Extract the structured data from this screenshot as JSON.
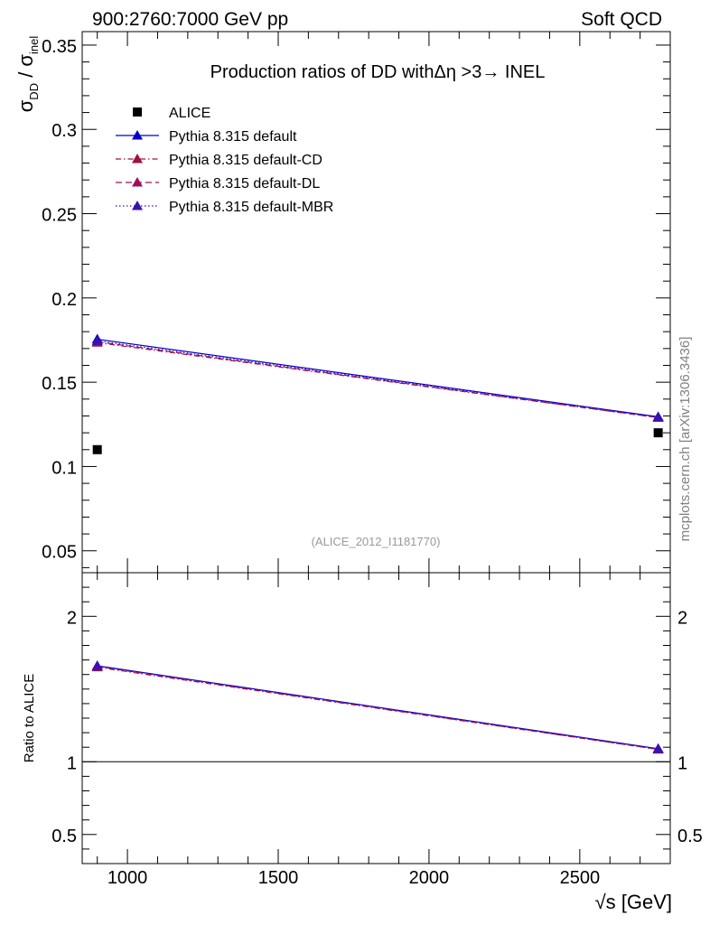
{
  "header": {
    "left": "900:2760:7000 GeV pp",
    "right": "Soft QCD"
  },
  "watermark": "mcplots.cern.ch [arXiv:1306.3436]",
  "chart_data": {
    "type": "line",
    "title": "Production ratios of DD withΔη >3→ INEL",
    "analysis_label": "(ALICE_2012_I1181770)",
    "x": [
      900,
      2760
    ],
    "xlabel": "√s [GeV]",
    "xlim": [
      850,
      2800
    ],
    "xticks": [
      1000,
      1500,
      2000,
      2500
    ],
    "xtick_labels": [
      "1000",
      "1500",
      "2000",
      "2500"
    ],
    "main": {
      "ylabel_main": "σ",
      "ylabel_sub1": "DD",
      "ylabel_mid": " / σ",
      "ylabel_sub2": "inel",
      "ylim": [
        0.037,
        0.358
      ],
      "yticks": [
        0.05,
        0.1,
        0.15,
        0.2,
        0.25,
        0.3,
        0.35
      ],
      "ytick_labels": [
        "0.05",
        "0.1",
        "0.15",
        "0.2",
        "0.25",
        "0.3",
        "0.35"
      ],
      "data": {
        "name": "ALICE",
        "values": [
          0.11,
          0.12
        ],
        "color": "#000000"
      },
      "series": [
        {
          "name": "Pythia 8.315 default",
          "values": [
            0.1755,
            0.1295
          ],
          "color": "#0000cc",
          "dash": "solid"
        },
        {
          "name": "Pythia 8.315 default-CD",
          "values": [
            0.1735,
            0.129
          ],
          "color": "#a01040",
          "dash": "dashdot"
        },
        {
          "name": "Pythia 8.315 default-DL",
          "values": [
            0.174,
            0.129
          ],
          "color": "#a0105a",
          "dash": "dashed"
        },
        {
          "name": "Pythia 8.315 default-MBR",
          "values": [
            0.1745,
            0.1293
          ],
          "color": "#3b10b0",
          "dash": "dotted"
        }
      ]
    },
    "ratio": {
      "ylabel": "Ratio to ALICE",
      "ylim": [
        0.3,
        2.3
      ],
      "yticks": [
        0.5,
        1,
        2
      ],
      "ytick_labels": [
        "0.5",
        "1",
        "2"
      ],
      "series_values": [
        [
          1.66,
          1.09
        ],
        [
          1.65,
          1.085
        ],
        [
          1.655,
          1.085
        ],
        [
          1.658,
          1.088
        ]
      ]
    },
    "grid": false,
    "legend_position": "top-left"
  }
}
